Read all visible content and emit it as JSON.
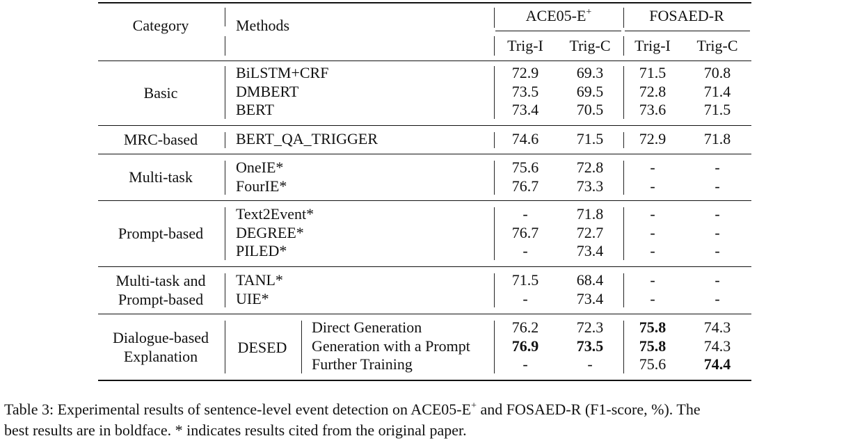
{
  "table": {
    "header": {
      "category": "Category",
      "methods": "Methods",
      "datasets": [
        {
          "name": "ACE05-E",
          "sup": "+"
        },
        {
          "name": "FOSAED-R",
          "sup": ""
        }
      ],
      "metrics": [
        "Trig-I",
        "Trig-C",
        "Trig-I",
        "Trig-C"
      ]
    },
    "groups": [
      {
        "category": [
          "Basic"
        ],
        "rows": [
          {
            "method": "BiLSTM+CRF",
            "values": [
              "72.9",
              "69.3",
              "71.5",
              "70.8"
            ],
            "bold": []
          },
          {
            "method": "DMBERT",
            "values": [
              "73.5",
              "69.5",
              "72.8",
              "71.4"
            ],
            "bold": []
          },
          {
            "method": "BERT",
            "values": [
              "73.4",
              "70.5",
              "73.6",
              "71.5"
            ],
            "bold": []
          }
        ]
      },
      {
        "category": [
          "MRC-based"
        ],
        "rows": [
          {
            "method": "BERT_QA_TRIGGER",
            "values": [
              "74.6",
              "71.5",
              "72.9",
              "71.8"
            ],
            "bold": []
          }
        ]
      },
      {
        "category": [
          "Multi-task"
        ],
        "rows": [
          {
            "method": "OneIE*",
            "values": [
              "75.6",
              "72.8",
              "-",
              "-"
            ],
            "bold": []
          },
          {
            "method": "FourIE*",
            "values": [
              "76.7",
              "73.3",
              "-",
              "-"
            ],
            "bold": []
          }
        ]
      },
      {
        "category": [
          "Prompt-based"
        ],
        "rows": [
          {
            "method": "Text2Event*",
            "values": [
              "-",
              "71.8",
              "-",
              "-"
            ],
            "bold": []
          },
          {
            "method": "DEGREE*",
            "values": [
              "76.7",
              "72.7",
              "-",
              "-"
            ],
            "bold": []
          },
          {
            "method": "PILED*",
            "values": [
              "-",
              "73.4",
              "-",
              "-"
            ],
            "bold": []
          }
        ]
      },
      {
        "category": [
          "Multi-task and",
          "Prompt-based"
        ],
        "rows": [
          {
            "method": "TANL*",
            "values": [
              "71.5",
              "68.4",
              "-",
              "-"
            ],
            "bold": []
          },
          {
            "method": "UIE*",
            "values": [
              "-",
              "73.4",
              "-",
              "-"
            ],
            "bold": []
          }
        ]
      },
      {
        "category": [
          "Dialogue-based",
          "Explanation"
        ],
        "method_group": "DESED",
        "rows": [
          {
            "method": "Direct Generation",
            "values": [
              "76.2",
              "72.3",
              "75.8",
              "74.3"
            ],
            "bold": [
              2
            ]
          },
          {
            "method": "Generation with a Prompt",
            "values": [
              "76.9",
              "73.5",
              "75.8",
              "74.3"
            ],
            "bold": [
              0,
              1,
              2
            ]
          },
          {
            "method": "Further Training",
            "values": [
              "-",
              "-",
              "75.6",
              "74.4"
            ],
            "bold": [
              3
            ]
          }
        ]
      }
    ]
  },
  "caption": {
    "line1_a": "Table 3: Experimental results of sentence-level event detection on ACE05-E",
    "line1_sup": "+",
    "line1_b": " and FOSAED-R (F1-score, %). The",
    "line2": "best results are in boldface. * indicates results cited from the original paper."
  }
}
